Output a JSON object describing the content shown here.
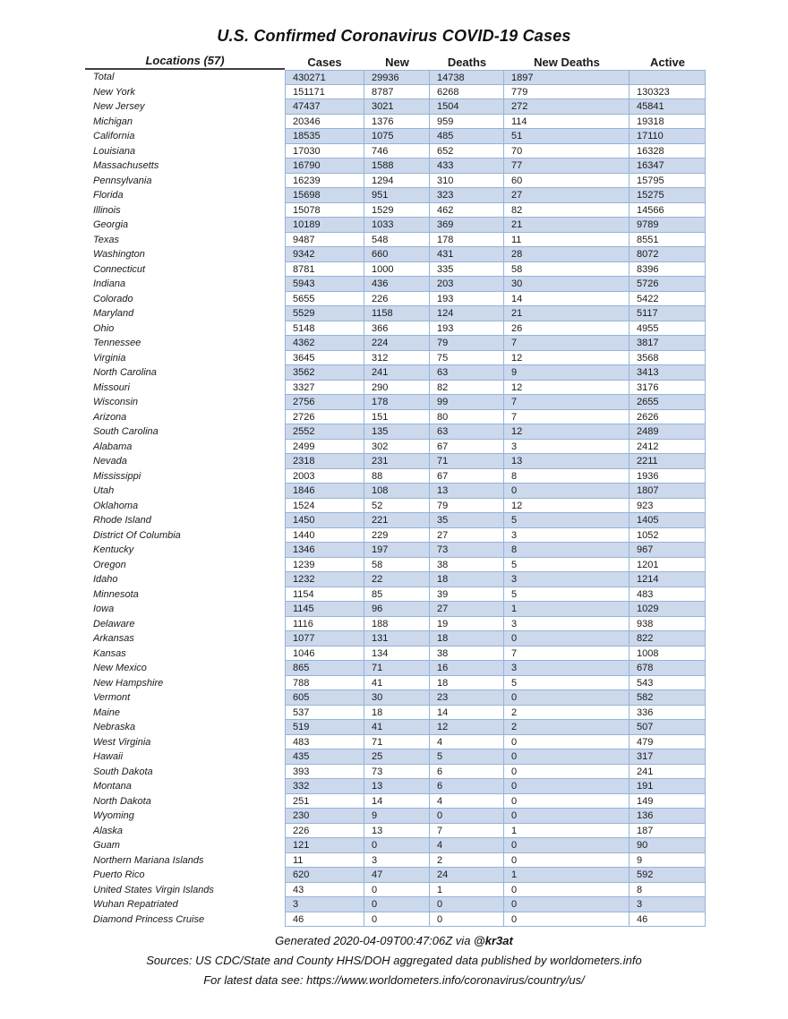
{
  "title": "U.S. Confirmed Coronavirus COVID-19 Cases",
  "table": {
    "columns": [
      "Locations (57)",
      "Cases",
      "New",
      "Deaths",
      "New Deaths",
      "Active"
    ],
    "rows": [
      [
        "Total",
        "430271",
        "29936",
        "14738",
        "1897",
        ""
      ],
      [
        "New York",
        "151171",
        "8787",
        "6268",
        "779",
        "130323"
      ],
      [
        "New Jersey",
        "47437",
        "3021",
        "1504",
        "272",
        "45841"
      ],
      [
        "Michigan",
        "20346",
        "1376",
        "959",
        "114",
        "19318"
      ],
      [
        "California",
        "18535",
        "1075",
        "485",
        "51",
        "17110"
      ],
      [
        "Louisiana",
        "17030",
        "746",
        "652",
        "70",
        "16328"
      ],
      [
        "Massachusetts",
        "16790",
        "1588",
        "433",
        "77",
        "16347"
      ],
      [
        "Pennsylvania",
        "16239",
        "1294",
        "310",
        "60",
        "15795"
      ],
      [
        "Florida",
        "15698",
        "951",
        "323",
        "27",
        "15275"
      ],
      [
        "Illinois",
        "15078",
        "1529",
        "462",
        "82",
        "14566"
      ],
      [
        "Georgia",
        "10189",
        "1033",
        "369",
        "21",
        "9789"
      ],
      [
        "Texas",
        "9487",
        "548",
        "178",
        "11",
        "8551"
      ],
      [
        "Washington",
        "9342",
        "660",
        "431",
        "28",
        "8072"
      ],
      [
        "Connecticut",
        "8781",
        "1000",
        "335",
        "58",
        "8396"
      ],
      [
        "Indiana",
        "5943",
        "436",
        "203",
        "30",
        "5726"
      ],
      [
        "Colorado",
        "5655",
        "226",
        "193",
        "14",
        "5422"
      ],
      [
        "Maryland",
        "5529",
        "1158",
        "124",
        "21",
        "5117"
      ],
      [
        "Ohio",
        "5148",
        "366",
        "193",
        "26",
        "4955"
      ],
      [
        "Tennessee",
        "4362",
        "224",
        "79",
        "7",
        "3817"
      ],
      [
        "Virginia",
        "3645",
        "312",
        "75",
        "12",
        "3568"
      ],
      [
        "North Carolina",
        "3562",
        "241",
        "63",
        "9",
        "3413"
      ],
      [
        "Missouri",
        "3327",
        "290",
        "82",
        "12",
        "3176"
      ],
      [
        "Wisconsin",
        "2756",
        "178",
        "99",
        "7",
        "2655"
      ],
      [
        "Arizona",
        "2726",
        "151",
        "80",
        "7",
        "2626"
      ],
      [
        "South Carolina",
        "2552",
        "135",
        "63",
        "12",
        "2489"
      ],
      [
        "Alabama",
        "2499",
        "302",
        "67",
        "3",
        "2412"
      ],
      [
        "Nevada",
        "2318",
        "231",
        "71",
        "13",
        "2211"
      ],
      [
        "Mississippi",
        "2003",
        "88",
        "67",
        "8",
        "1936"
      ],
      [
        "Utah",
        "1846",
        "108",
        "13",
        "0",
        "1807"
      ],
      [
        "Oklahoma",
        "1524",
        "52",
        "79",
        "12",
        "923"
      ],
      [
        "Rhode Island",
        "1450",
        "221",
        "35",
        "5",
        "1405"
      ],
      [
        "District Of Columbia",
        "1440",
        "229",
        "27",
        "3",
        "1052"
      ],
      [
        "Kentucky",
        "1346",
        "197",
        "73",
        "8",
        "967"
      ],
      [
        "Oregon",
        "1239",
        "58",
        "38",
        "5",
        "1201"
      ],
      [
        "Idaho",
        "1232",
        "22",
        "18",
        "3",
        "1214"
      ],
      [
        "Minnesota",
        "1154",
        "85",
        "39",
        "5",
        "483"
      ],
      [
        "Iowa",
        "1145",
        "96",
        "27",
        "1",
        "1029"
      ],
      [
        "Delaware",
        "1116",
        "188",
        "19",
        "3",
        "938"
      ],
      [
        "Arkansas",
        "1077",
        "131",
        "18",
        "0",
        "822"
      ],
      [
        "Kansas",
        "1046",
        "134",
        "38",
        "7",
        "1008"
      ],
      [
        "New Mexico",
        "865",
        "71",
        "16",
        "3",
        "678"
      ],
      [
        "New Hampshire",
        "788",
        "41",
        "18",
        "5",
        "543"
      ],
      [
        "Vermont",
        "605",
        "30",
        "23",
        "0",
        "582"
      ],
      [
        "Maine",
        "537",
        "18",
        "14",
        "2",
        "336"
      ],
      [
        "Nebraska",
        "519",
        "41",
        "12",
        "2",
        "507"
      ],
      [
        "West Virginia",
        "483",
        "71",
        "4",
        "0",
        "479"
      ],
      [
        "Hawaii",
        "435",
        "25",
        "5",
        "0",
        "317"
      ],
      [
        "South Dakota",
        "393",
        "73",
        "6",
        "0",
        "241"
      ],
      [
        "Montana",
        "332",
        "13",
        "6",
        "0",
        "191"
      ],
      [
        "North Dakota",
        "251",
        "14",
        "4",
        "0",
        "149"
      ],
      [
        "Wyoming",
        "230",
        "9",
        "0",
        "0",
        "136"
      ],
      [
        "Alaska",
        "226",
        "13",
        "7",
        "1",
        "187"
      ],
      [
        "Guam",
        "121",
        "0",
        "4",
        "0",
        "90"
      ],
      [
        "Northern Mariana Islands",
        "11",
        "3",
        "2",
        "0",
        "9"
      ],
      [
        "Puerto Rico",
        "620",
        "47",
        "24",
        "1",
        "592"
      ],
      [
        "United States Virgin Islands",
        "43",
        "0",
        "1",
        "0",
        "8"
      ],
      [
        "Wuhan Repatriated",
        "3",
        "0",
        "0",
        "0",
        "3"
      ],
      [
        "Diamond Princess Cruise",
        "46",
        "0",
        "0",
        "0",
        "46"
      ]
    ]
  },
  "footer": {
    "generated_prefix": "Generated  2020-04-09T00:47:06Z via ",
    "generated_handle": "@kr3at",
    "sources": "Sources:  US CDC/State and County HHS/DOH aggregated data published by worldometers.info",
    "latest": "For latest data see: https://www.worldometers.info/coronavirus/country/us/"
  },
  "colors": {
    "row_shade": "#ccd8ec",
    "table_border": "#95b3d7",
    "header_underline": "#3f3f3f",
    "text": "#1a1a1a"
  }
}
